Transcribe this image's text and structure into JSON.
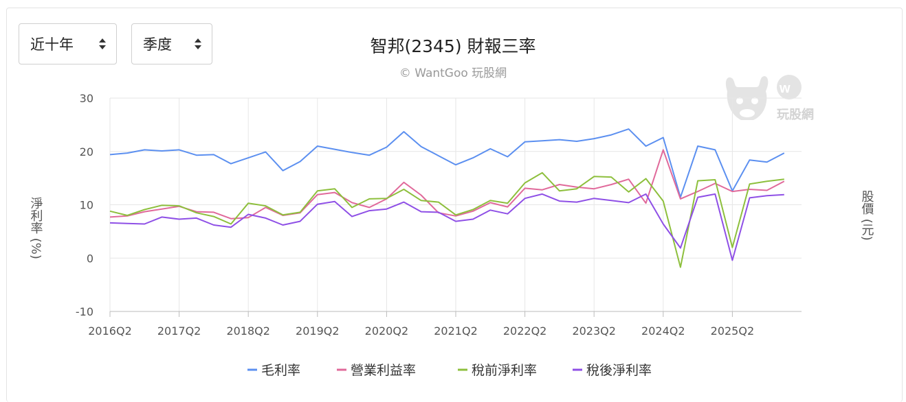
{
  "controls": {
    "range_label": "近十年",
    "period_label": "季度"
  },
  "watermark": {
    "text": "玩股網",
    "icon": "wantgoo-bull-logo"
  },
  "colors": {
    "gross": "#5b8ff0",
    "operating": "#e0699a",
    "pretax": "#8dbf3c",
    "net": "#8e4fe6",
    "grid": "#e6e6e6",
    "axis": "#bbbbbb"
  },
  "chart_data": {
    "type": "line",
    "title": "智邦(2345) 財報三率",
    "subtitle": "© WantGoo 玩股網",
    "ylabel": "淨利率 (%)",
    "y2label": "股價 (元)",
    "ylim": [
      -10,
      30
    ],
    "yticks": [
      "30",
      "20",
      "10",
      "0",
      "-10"
    ],
    "xtick_labels": [
      "2016Q2",
      "2017Q2",
      "2018Q2",
      "2019Q2",
      "2020Q2",
      "2021Q2",
      "2022Q2",
      "2023Q2",
      "2024Q2",
      "2025Q2"
    ],
    "x": [
      "2016Q2",
      "2016Q3",
      "2016Q4",
      "2017Q1",
      "2017Q2",
      "2017Q3",
      "2017Q4",
      "2018Q1",
      "2018Q2",
      "2018Q3",
      "2018Q4",
      "2019Q1",
      "2019Q2",
      "2019Q3",
      "2019Q4",
      "2020Q1",
      "2020Q2",
      "2020Q3",
      "2020Q4",
      "2021Q1",
      "2021Q2",
      "2021Q3",
      "2021Q4",
      "2022Q1",
      "2022Q2",
      "2022Q3",
      "2022Q4",
      "2023Q1",
      "2023Q2",
      "2023Q3",
      "2023Q4",
      "2024Q1",
      "2024Q2",
      "2024Q3",
      "2024Q4",
      "2025Q1",
      "2025Q2",
      "2025Q3",
      "2025Q4",
      "2026Q1",
      "2026Q2"
    ],
    "grid": true,
    "legend_position": "bottom",
    "series": [
      {
        "name": "毛利率",
        "color_key": "gross",
        "values": [
          19.4,
          19.7,
          20.3,
          20.1,
          20.3,
          19.3,
          19.4,
          17.7,
          18.8,
          19.9,
          16.4,
          18.1,
          21.0,
          20.4,
          19.8,
          19.3,
          20.8,
          23.7,
          20.9,
          19.2,
          17.5,
          18.8,
          20.5,
          19.0,
          21.8,
          22.0,
          22.2,
          21.9,
          22.4,
          23.1,
          24.2,
          21.0,
          22.6,
          11.4,
          21.0,
          20.3,
          12.6,
          18.4,
          18.0,
          19.7,
          null
        ]
      },
      {
        "name": "營業利益率",
        "color_key": "operating",
        "values": [
          7.7,
          7.9,
          8.7,
          9.2,
          9.7,
          8.7,
          8.6,
          7.4,
          7.6,
          9.5,
          8.0,
          8.5,
          11.9,
          12.3,
          10.4,
          9.5,
          11.1,
          14.2,
          11.8,
          8.5,
          7.9,
          8.8,
          10.4,
          9.6,
          13.1,
          12.8,
          13.8,
          13.3,
          13.0,
          13.8,
          14.8,
          10.3,
          20.3,
          11.1,
          12.5,
          14.0,
          12.5,
          12.9,
          12.7,
          14.4,
          null
        ]
      },
      {
        "name": "稅前淨利率",
        "color_key": "pretax",
        "values": [
          8.8,
          8.0,
          9.1,
          9.9,
          9.8,
          8.5,
          7.8,
          6.4,
          10.3,
          9.8,
          8.1,
          8.6,
          12.6,
          13.0,
          9.5,
          11.1,
          11.2,
          12.9,
          10.8,
          10.5,
          8.1,
          9.1,
          10.8,
          10.3,
          14.1,
          16.0,
          12.6,
          13.0,
          15.3,
          15.2,
          12.4,
          14.9,
          10.7,
          -1.7,
          14.5,
          14.7,
          2.0,
          13.9,
          14.4,
          14.8,
          null
        ]
      },
      {
        "name": "稅後淨利率",
        "color_key": "net",
        "values": [
          6.6,
          6.5,
          6.4,
          7.7,
          7.3,
          7.5,
          6.2,
          5.8,
          8.2,
          7.5,
          6.2,
          6.9,
          10.1,
          10.6,
          7.8,
          8.9,
          9.2,
          10.5,
          8.7,
          8.6,
          6.9,
          7.3,
          9.0,
          8.3,
          11.2,
          12.0,
          10.7,
          10.5,
          11.2,
          10.8,
          10.4,
          12.0,
          6.4,
          1.9,
          11.4,
          12.0,
          -0.4,
          11.3,
          11.7,
          11.9,
          null
        ]
      }
    ]
  }
}
